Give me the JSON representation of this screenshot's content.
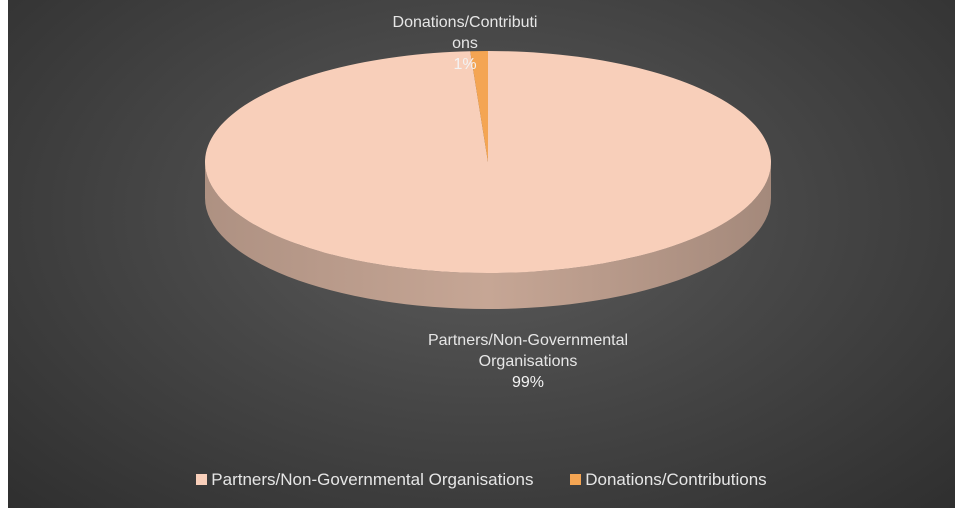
{
  "chart_data": {
    "type": "pie",
    "title": "",
    "categories": [
      "Partners/Non-Governmental Organisations",
      "Donations/Contributions"
    ],
    "values": [
      99,
      1
    ],
    "series": [
      {
        "slices": [
          {
            "name": "Partners/Non-Governmental Organisations",
            "value": 99,
            "label_line1": "Partners/Non-Governmental",
            "label_line2": "Organisations",
            "percent_label": "99%",
            "color": "#f8cfba"
          },
          {
            "name": "Donations/Contributions",
            "value": 1,
            "label_line1": "Donations/Contributi",
            "label_line2": "ons",
            "percent_label": "1%",
            "color": "#f4a553"
          }
        ]
      }
    ],
    "legend": {
      "position": "bottom",
      "items": [
        {
          "label": "Partners/Non-Governmental Organisations",
          "color": "#f8cfba"
        },
        {
          "label": "Donations/Contributions",
          "color": "#f4a553"
        }
      ]
    },
    "style": "3d",
    "background": "#3f3f3f"
  }
}
